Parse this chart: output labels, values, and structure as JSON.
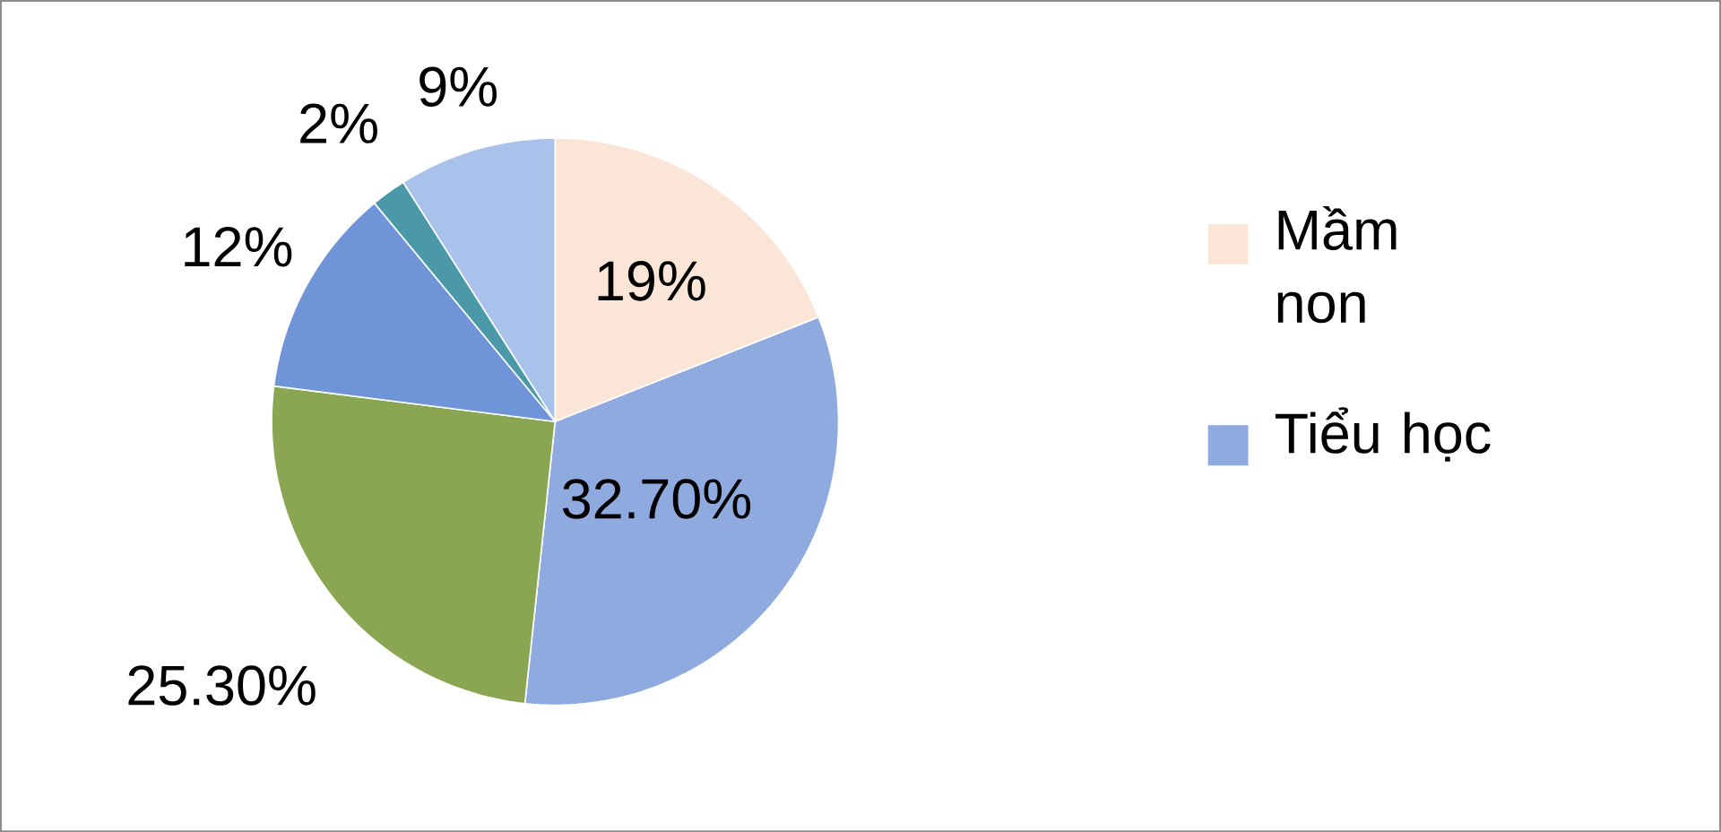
{
  "chart_data": {
    "type": "pie",
    "categories": [
      "Mầm non",
      "Tiểu học",
      null,
      null,
      null,
      null
    ],
    "values": [
      19,
      32.7,
      25.3,
      12,
      2,
      9
    ],
    "colors": [
      "#fbe5d6",
      "#8eaadf",
      "#8aa652",
      "#6f95d8",
      "#4a98a8",
      "#a9c2ec"
    ],
    "value_labels": [
      "19%",
      "32.70%",
      "25.30%",
      "12%",
      "2%",
      "9%"
    ],
    "legend": "right"
  }
}
